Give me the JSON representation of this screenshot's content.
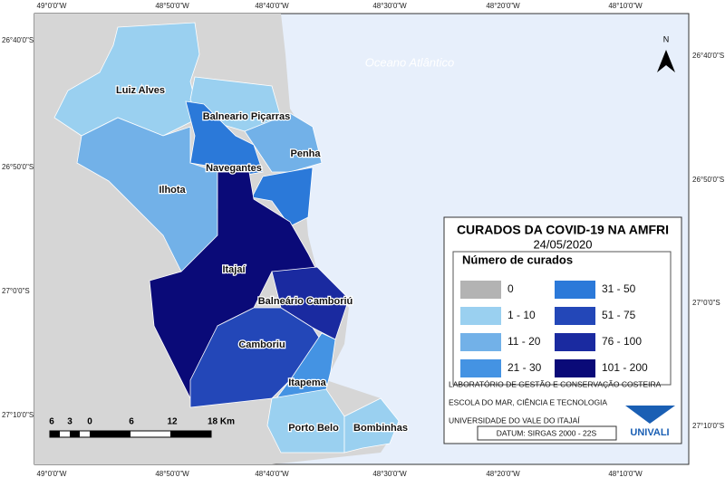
{
  "ocean_label": "Oceano Atlântico",
  "north": "N",
  "graticule": {
    "top": [
      "49°0'0\"W",
      "48°50'0\"W",
      "48°40'0\"W",
      "48°30'0\"W",
      "48°20'0\"W",
      "48°10'0\"W"
    ],
    "bottom": [
      "49°0'0\"W",
      "48°50'0\"W",
      "48°40'0\"W",
      "48°30'0\"W",
      "48°20'0\"W",
      "48°10'0\"W"
    ],
    "left": [
      "26°40'0\"S",
      "26°50'0\"S",
      "27°0'0\"S",
      "27°10'0\"S"
    ],
    "right": [
      "26°40'0\"S",
      "26°50'0\"S",
      "27°0'0\"S",
      "27°10'0\"S"
    ]
  },
  "municipalities": [
    "Luiz Alves",
    "Balneario Piçarras",
    "Navegantes",
    "Penha",
    "Ilhota",
    "Itajaí",
    "Balneário Camboriú",
    "Camboriu",
    "Itapema",
    "Porto Belo",
    "Bombinhas"
  ],
  "legend": {
    "title": "CURADOS DA COVID-19 NA AMFRI",
    "date": "24/05/2020",
    "subtitle": "Número de curados",
    "classes": [
      {
        "label": "0",
        "color": "#b3b3b3"
      },
      {
        "label": "1 - 10",
        "color": "#9ad0f0"
      },
      {
        "label": "11 - 20",
        "color": "#72b1e8"
      },
      {
        "label": "21 - 30",
        "color": "#4493e3"
      },
      {
        "label": "31 - 50",
        "color": "#2b79d9"
      },
      {
        "label": "51 - 75",
        "color": "#2347b8"
      },
      {
        "label": "76 - 100",
        "color": "#1a2aa0"
      },
      {
        "label": "101 - 200",
        "color": "#0a0a78"
      }
    ]
  },
  "credits": [
    "LABORATÓRIO DE GESTÃO E CONSERVAÇÃO COSTEIRA",
    "ESCOLA DO MAR, CIÊNCIA E TECNOLOGIA",
    "UNIVERSIDADE DO VALE DO ITAJAÍ"
  ],
  "datum": "DATUM: SIRGAS 2000 - 22S",
  "logo": "UNIVALI",
  "scale_bar": [
    "6",
    "3",
    "0",
    "6",
    "12",
    "18 Km"
  ]
}
